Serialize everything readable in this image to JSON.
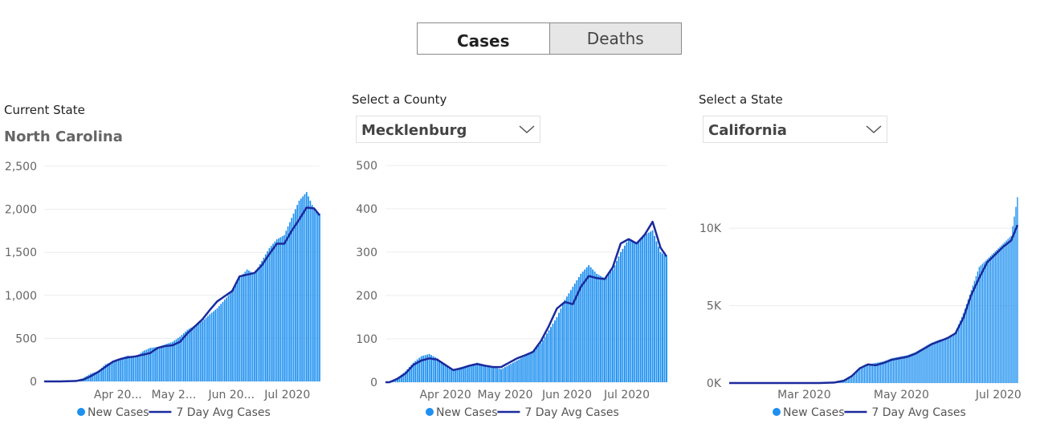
{
  "toggle": {
    "cases_label": "Cases",
    "deaths_label": "Deaths"
  },
  "panel1": {
    "label": "Current State",
    "value": "North Carolina"
  },
  "panel2": {
    "label": "Select a County",
    "value": "Mecklenburg"
  },
  "panel3": {
    "label": "Select a State",
    "value": "California"
  },
  "colors": {
    "bars": "#1e90f0",
    "avg_line": "#1a2a9c",
    "grid": "#ececec"
  },
  "chart_data": [
    {
      "type": "bar",
      "title": "North Carolina",
      "series": [
        {
          "name": "New Cases",
          "kind": "bar",
          "points": [
            [
              "Mar 10",
              0
            ],
            [
              "Mar 18",
              10
            ],
            [
              "Mar 22",
              40
            ],
            [
              "Mar 26",
              90
            ],
            [
              "Mar 30",
              120
            ],
            [
              "Apr 3",
              200
            ],
            [
              "Apr 7",
              230
            ],
            [
              "Apr 11",
              270
            ],
            [
              "Apr 15",
              300
            ],
            [
              "Apr 19",
              280
            ],
            [
              "Apr 23",
              350
            ],
            [
              "Apr 27",
              390
            ],
            [
              "May 1",
              400
            ],
            [
              "May 5",
              430
            ],
            [
              "May 9",
              460
            ],
            [
              "May 13",
              520
            ],
            [
              "May 17",
              600
            ],
            [
              "May 21",
              650
            ],
            [
              "May 25",
              700
            ],
            [
              "May 29",
              780
            ],
            [
              "Jun 2",
              850
            ],
            [
              "Jun 6",
              950
            ],
            [
              "Jun 10",
              1050
            ],
            [
              "Jun 14",
              1200
            ],
            [
              "Jun 18",
              1300
            ],
            [
              "Jun 22",
              1250
            ],
            [
              "Jun 26",
              1400
            ],
            [
              "Jun 30",
              1550
            ],
            [
              "Jul 4",
              1650
            ],
            [
              "Jul 8",
              1700
            ],
            [
              "Jul 12",
              1900
            ],
            [
              "Jul 16",
              2100
            ],
            [
              "Jul 20",
              2200
            ],
            [
              "Jul 24",
              2000
            ],
            [
              "Jul 27",
              1950
            ]
          ]
        },
        {
          "name": "7 Day Avg Cases",
          "kind": "line",
          "points": [
            [
              "Mar 10",
              0
            ],
            [
              "Mar 18",
              5
            ],
            [
              "Mar 22",
              20
            ],
            [
              "Mar 26",
              60
            ],
            [
              "Mar 30",
              110
            ],
            [
              "Apr 3",
              170
            ],
            [
              "Apr 7",
              230
            ],
            [
              "Apr 11",
              260
            ],
            [
              "Apr 15",
              280
            ],
            [
              "Apr 19",
              290
            ],
            [
              "Apr 23",
              310
            ],
            [
              "Apr 27",
              330
            ],
            [
              "May 1",
              390
            ],
            [
              "May 5",
              410
            ],
            [
              "May 9",
              420
            ],
            [
              "May 13",
              460
            ],
            [
              "May 17",
              560
            ],
            [
              "May 21",
              640
            ],
            [
              "May 25",
              720
            ],
            [
              "May 29",
              830
            ],
            [
              "Jun 2",
              930
            ],
            [
              "Jun 6",
              990
            ],
            [
              "Jun 10",
              1050
            ],
            [
              "Jun 14",
              1220
            ],
            [
              "Jun 18",
              1240
            ],
            [
              "Jun 22",
              1260
            ],
            [
              "Jun 26",
              1350
            ],
            [
              "Jun 30",
              1480
            ],
            [
              "Jul 4",
              1600
            ],
            [
              "Jul 8",
              1600
            ],
            [
              "Jul 12",
              1750
            ],
            [
              "Jul 16",
              1880
            ],
            [
              "Jul 20",
              2020
            ],
            [
              "Jul 24",
              2010
            ],
            [
              "Jul 27",
              1930
            ]
          ]
        }
      ],
      "ylim": [
        0,
        2500
      ],
      "yticks": [
        "0",
        "500",
        "1,000",
        "1,500",
        "2,000",
        "2,500"
      ],
      "ytick_values": [
        0,
        500,
        1000,
        1500,
        2000,
        2500
      ],
      "xticks": [
        "Apr 20...",
        "May 2...",
        "Jun 20...",
        "Jul 2020"
      ],
      "xtick_dates": [
        "Apr 1",
        "May 1",
        "Jun 1",
        "Jul 1"
      ],
      "x_range": [
        "Mar 1",
        "Jul 27"
      ],
      "legend": [
        "New Cases",
        "7 Day Avg Cases"
      ],
      "legend_position": "bottom",
      "grid": true
    },
    {
      "type": "bar",
      "title": "Mecklenburg",
      "series": [
        {
          "name": "New Cases",
          "kind": "bar",
          "points": [
            [
              "Mar 12",
              0
            ],
            [
              "Mar 16",
              10
            ],
            [
              "Mar 20",
              25
            ],
            [
              "Mar 24",
              45
            ],
            [
              "Mar 28",
              60
            ],
            [
              "Apr 1",
              65
            ],
            [
              "Apr 5",
              55
            ],
            [
              "Apr 9",
              40
            ],
            [
              "Apr 13",
              30
            ],
            [
              "Apr 17",
              35
            ],
            [
              "Apr 21",
              40
            ],
            [
              "Apr 25",
              45
            ],
            [
              "Apr 29",
              40
            ],
            [
              "May 3",
              35
            ],
            [
              "May 7",
              30
            ],
            [
              "May 11",
              40
            ],
            [
              "May 15",
              50
            ],
            [
              "May 19",
              60
            ],
            [
              "May 23",
              70
            ],
            [
              "May 27",
              90
            ],
            [
              "May 31",
              120
            ],
            [
              "Jun 4",
              150
            ],
            [
              "Jun 8",
              190
            ],
            [
              "Jun 12",
              220
            ],
            [
              "Jun 16",
              250
            ],
            [
              "Jun 20",
              270
            ],
            [
              "Jun 24",
              250
            ],
            [
              "Jun 28",
              240
            ],
            [
              "Jul 2",
              260
            ],
            [
              "Jul 6",
              300
            ],
            [
              "Jul 10",
              330
            ],
            [
              "Jul 14",
              320
            ],
            [
              "Jul 18",
              340
            ],
            [
              "Jul 22",
              350
            ],
            [
              "Jul 26",
              300
            ],
            [
              "Jul 29",
              290
            ]
          ]
        },
        {
          "name": "7 Day Avg Cases",
          "kind": "line",
          "points": [
            [
              "Mar 12",
              0
            ],
            [
              "Mar 16",
              8
            ],
            [
              "Mar 20",
              20
            ],
            [
              "Mar 24",
              40
            ],
            [
              "Mar 28",
              50
            ],
            [
              "Apr 1",
              55
            ],
            [
              "Apr 5",
              52
            ],
            [
              "Apr 9",
              40
            ],
            [
              "Apr 13",
              28
            ],
            [
              "Apr 17",
              32
            ],
            [
              "Apr 21",
              38
            ],
            [
              "Apr 25",
              42
            ],
            [
              "Apr 29",
              38
            ],
            [
              "May 3",
              35
            ],
            [
              "May 7",
              35
            ],
            [
              "May 11",
              45
            ],
            [
              "May 15",
              55
            ],
            [
              "May 19",
              62
            ],
            [
              "May 23",
              70
            ],
            [
              "May 27",
              95
            ],
            [
              "May 31",
              130
            ],
            [
              "Jun 4",
              170
            ],
            [
              "Jun 8",
              185
            ],
            [
              "Jun 12",
              180
            ],
            [
              "Jun 16",
              220
            ],
            [
              "Jun 20",
              245
            ],
            [
              "Jun 24",
              240
            ],
            [
              "Jun 28",
              238
            ],
            [
              "Jul 2",
              265
            ],
            [
              "Jul 6",
              320
            ],
            [
              "Jul 10",
              330
            ],
            [
              "Jul 14",
              320
            ],
            [
              "Jul 18",
              340
            ],
            [
              "Jul 22",
              370
            ],
            [
              "Jul 26",
              310
            ],
            [
              "Jul 29",
              290
            ]
          ]
        }
      ],
      "ylim": [
        0,
        500
      ],
      "yticks": [
        "0",
        "100",
        "200",
        "300",
        "400",
        "500"
      ],
      "ytick_values": [
        0,
        100,
        200,
        300,
        400,
        500
      ],
      "xticks": [
        "Apr 2020",
        "May 2020",
        "Jun 2020",
        "Jul 2020"
      ],
      "xtick_dates": [
        "Apr 1",
        "May 1",
        "Jun 1",
        "Jul 1"
      ],
      "x_range": [
        "Mar 10",
        "Jul 29"
      ],
      "legend": [
        "New Cases",
        "7 Day Avg Cases"
      ],
      "legend_position": "bottom",
      "grid": true
    },
    {
      "type": "bar",
      "title": "California",
      "series": [
        {
          "name": "New Cases",
          "kind": "bar",
          "points": [
            [
              "Mar 20",
              0
            ],
            [
              "Mar 30",
              50
            ],
            [
              "Apr 5",
              200
            ],
            [
              "Apr 10",
              500
            ],
            [
              "Apr 15",
              900
            ],
            [
              "Apr 20",
              1200
            ],
            [
              "Apr 25",
              1300
            ],
            [
              "Apr 30",
              1400
            ],
            [
              "May 5",
              1600
            ],
            [
              "May 10",
              1700
            ],
            [
              "May 15",
              1800
            ],
            [
              "May 20",
              2000
            ],
            [
              "May 25",
              2300
            ],
            [
              "May 30",
              2600
            ],
            [
              "Jun 4",
              2800
            ],
            [
              "Jun 9",
              2900
            ],
            [
              "Jun 14",
              3300
            ],
            [
              "Jun 19",
              4500
            ],
            [
              "Jun 24",
              6000
            ],
            [
              "Jun 29",
              7500
            ],
            [
              "Jul 4",
              8000
            ],
            [
              "Jul 9",
              8500
            ],
            [
              "Jul 14",
              9000
            ],
            [
              "Jul 19",
              9500
            ],
            [
              "Jul 23",
              12000
            ]
          ]
        },
        {
          "name": "7 Day Avg Cases",
          "kind": "line",
          "points": [
            [
              "Mar 20",
              0
            ],
            [
              "Mar 30",
              30
            ],
            [
              "Apr 5",
              150
            ],
            [
              "Apr 10",
              450
            ],
            [
              "Apr 15",
              950
            ],
            [
              "Apr 20",
              1200
            ],
            [
              "Apr 25",
              1150
            ],
            [
              "Apr 30",
              1300
            ],
            [
              "May 5",
              1500
            ],
            [
              "May 10",
              1600
            ],
            [
              "May 15",
              1700
            ],
            [
              "May 20",
              1900
            ],
            [
              "May 25",
              2200
            ],
            [
              "May 30",
              2500
            ],
            [
              "Jun 4",
              2700
            ],
            [
              "Jun 9",
              2900
            ],
            [
              "Jun 14",
              3200
            ],
            [
              "Jun 19",
              4200
            ],
            [
              "Jun 24",
              5700
            ],
            [
              "Jun 29",
              6800
            ],
            [
              "Jul 4",
              7800
            ],
            [
              "Jul 9",
              8300
            ],
            [
              "Jul 14",
              8800
            ],
            [
              "Jul 19",
              9200
            ],
            [
              "Jul 23",
              10200
            ]
          ]
        }
      ],
      "ylim": [
        0,
        14000
      ],
      "yticks": [
        "0K",
        "5K",
        "10K"
      ],
      "ytick_values": [
        0,
        5000,
        10000
      ],
      "xticks": [
        "Mar 2020",
        "May 2020",
        "Jul 2020"
      ],
      "xtick_dates": [
        "Mar 1",
        "May 1",
        "Jul 1"
      ],
      "x_range": [
        "Jan 24",
        "Jul 23"
      ],
      "legend": [
        "New Cases",
        "7 Day Avg Cases"
      ],
      "legend_position": "bottom",
      "grid": true
    }
  ]
}
